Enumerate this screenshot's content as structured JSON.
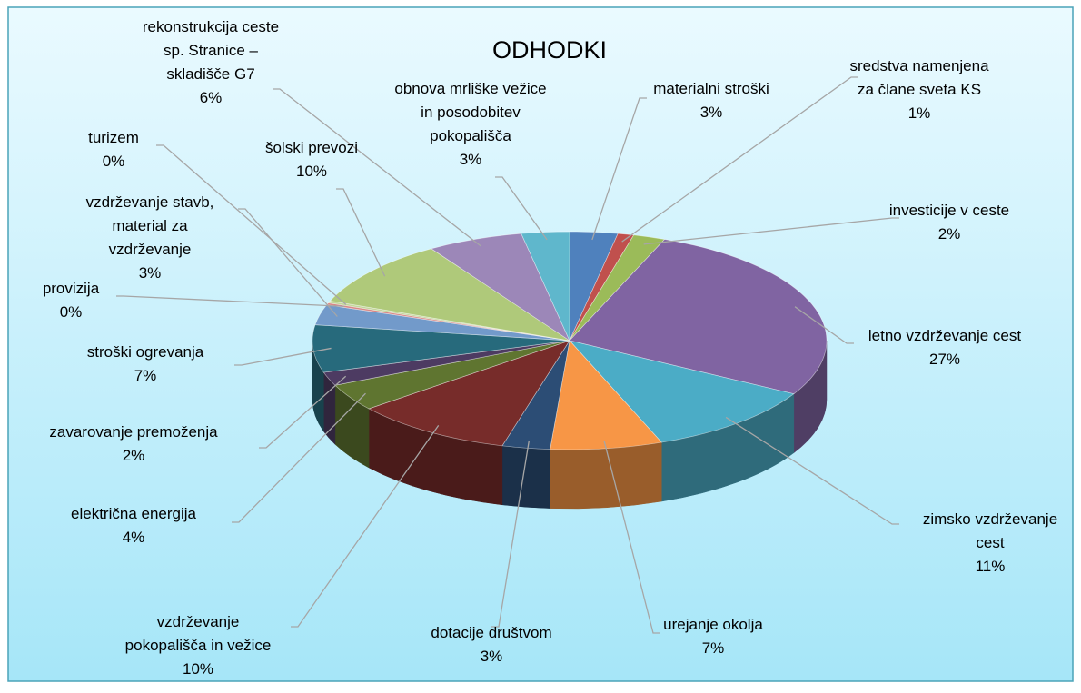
{
  "chart_data": {
    "type": "pie",
    "title": "ODHODKI",
    "categories": [
      "materialni stroški",
      "sredstva namenjena\nza člane sveta KS",
      "investicije v ceste",
      "letno vzdrževanje cest",
      "zimsko vzdrževanje\ncest",
      "urejanje okolja",
      "dotacije društvom",
      "vzdrževanje\npokopališča in vežice",
      "električna energija",
      "zavarovanje premoženja",
      "stroški ogrevanja",
      "vzdrževanje stavb,\nmaterial za\nvzdrževanje",
      "provizija",
      "turizem",
      "šolski prevozi",
      "rekonstrukcija ceste\nsp. Stranice –\nskladišče G7",
      "obnova mrliške vežice\nin posodobitev\npokopališča"
    ],
    "values": [
      3,
      1,
      2,
      27,
      11,
      7,
      3,
      10,
      4,
      2,
      7,
      3,
      0.3,
      0.3,
      10,
      6,
      3
    ],
    "value_labels": [
      "3%",
      "1%",
      "2%",
      "27%",
      "11%",
      "7%",
      "3%",
      "10%",
      "4%",
      "2%",
      "7%",
      "3%",
      "0%",
      "0%",
      "10%",
      "6%",
      "3%"
    ],
    "colors": [
      "#4f81bd",
      "#c0504d",
      "#9bbb59",
      "#8064a2",
      "#4bacc6",
      "#f79646",
      "#2c4d75",
      "#772c2a",
      "#5f7530",
      "#4d3b62",
      "#276a7c",
      "#729aca",
      "#d88886",
      "#c3d69b",
      "#afc97a",
      "#9c87b8",
      "#5fb7cc"
    ]
  }
}
